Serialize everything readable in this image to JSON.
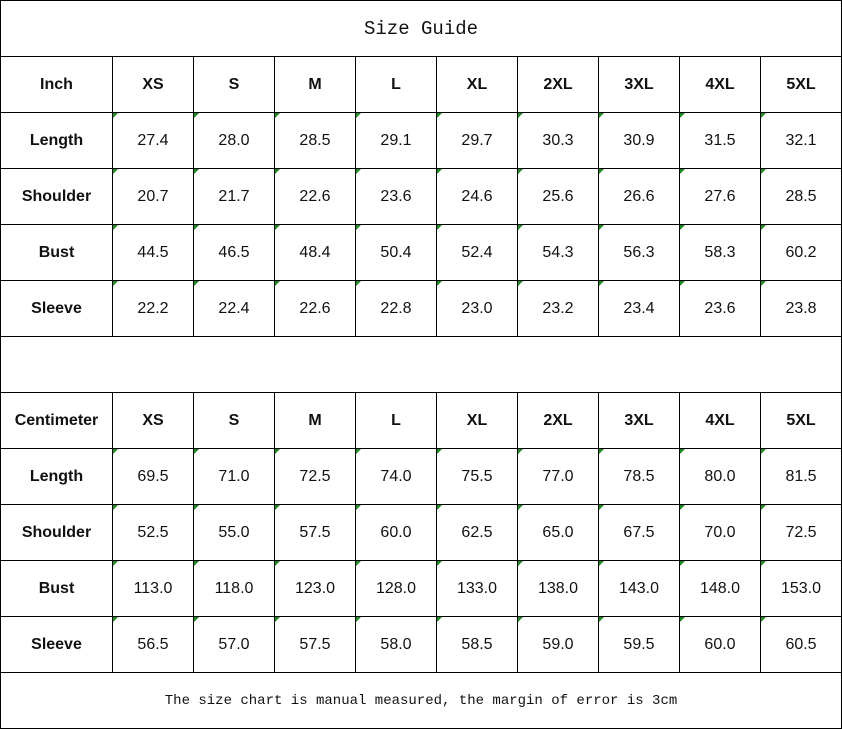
{
  "title": "Size Guide",
  "footer": "The size chart is manual measured, the margin of error is 3cm",
  "sizes": [
    "XS",
    "S",
    "M",
    "L",
    "XL",
    "2XL",
    "3XL",
    "4XL",
    "5XL"
  ],
  "tables": [
    {
      "unit": "Inch",
      "rows": [
        {
          "label": "Length",
          "values": [
            "27.4",
            "28.0",
            "28.5",
            "29.1",
            "29.7",
            "30.3",
            "30.9",
            "31.5",
            "32.1"
          ]
        },
        {
          "label": "Shoulder",
          "values": [
            "20.7",
            "21.7",
            "22.6",
            "23.6",
            "24.6",
            "25.6",
            "26.6",
            "27.6",
            "28.5"
          ]
        },
        {
          "label": "Bust",
          "values": [
            "44.5",
            "46.5",
            "48.4",
            "50.4",
            "52.4",
            "54.3",
            "56.3",
            "58.3",
            "60.2"
          ]
        },
        {
          "label": "Sleeve",
          "values": [
            "22.2",
            "22.4",
            "22.6",
            "22.8",
            "23.0",
            "23.2",
            "23.4",
            "23.6",
            "23.8"
          ]
        }
      ]
    },
    {
      "unit": "Centimeter",
      "rows": [
        {
          "label": "Length",
          "values": [
            "69.5",
            "71.0",
            "72.5",
            "74.0",
            "75.5",
            "77.0",
            "78.5",
            "80.0",
            "81.5"
          ]
        },
        {
          "label": "Shoulder",
          "values": [
            "52.5",
            "55.0",
            "57.5",
            "60.0",
            "62.5",
            "65.0",
            "67.5",
            "70.0",
            "72.5"
          ]
        },
        {
          "label": "Bust",
          "values": [
            "113.0",
            "118.0",
            "123.0",
            "128.0",
            "133.0",
            "138.0",
            "143.0",
            "148.0",
            "153.0"
          ]
        },
        {
          "label": "Sleeve",
          "values": [
            "56.5",
            "57.0",
            "57.5",
            "58.0",
            "58.5",
            "59.0",
            "59.5",
            "60.0",
            "60.5"
          ]
        }
      ]
    }
  ],
  "colors": {
    "border": "#000000",
    "error_marker": "#1f8a1f"
  }
}
